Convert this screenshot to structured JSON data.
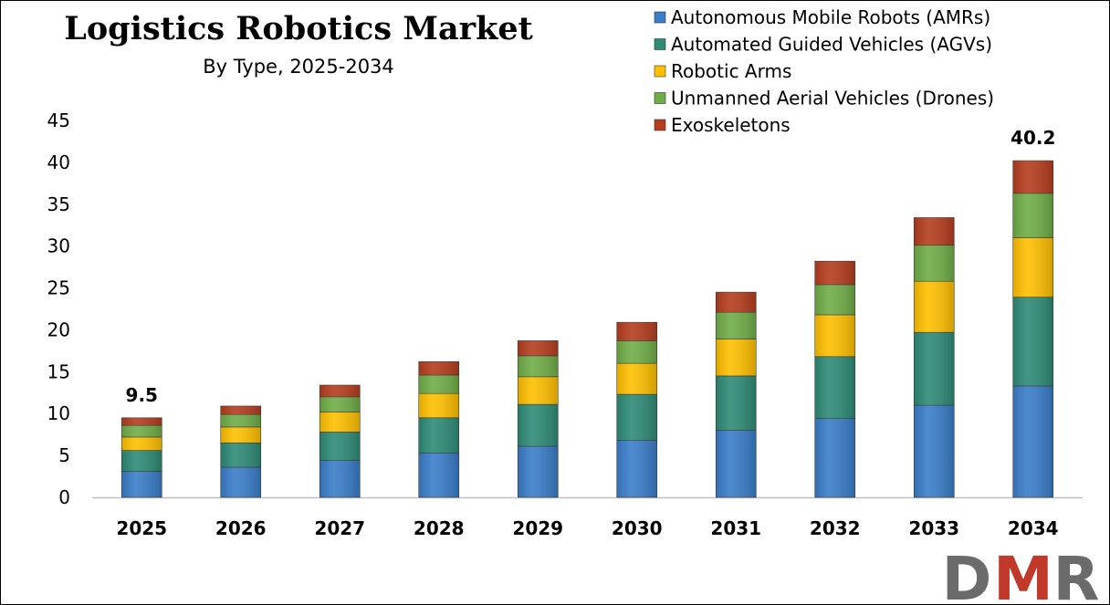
{
  "chart_data": {
    "type": "bar",
    "stacked": true,
    "title": "Logistics Robotics Market",
    "subtitle": "By Type, 2025-2034",
    "xlabel": "",
    "ylabel": "",
    "ylim": [
      0,
      45
    ],
    "yticks": [
      0,
      5,
      10,
      15,
      20,
      25,
      30,
      35,
      40,
      45
    ],
    "grid": false,
    "legend_position": "top-right",
    "categories": [
      "2025",
      "2026",
      "2027",
      "2028",
      "2029",
      "2030",
      "2031",
      "2032",
      "2033",
      "2034"
    ],
    "series": [
      {
        "name": "Autonomous Mobile Robots (AMRs)",
        "color": "#3a7dc9",
        "values": [
          3.1,
          3.6,
          4.4,
          5.3,
          6.1,
          6.8,
          8.0,
          9.4,
          11.0,
          13.3
        ]
      },
      {
        "name": "Automated Guided Vehicles (AGVs)",
        "color": "#2e8b76",
        "values": [
          2.5,
          2.9,
          3.4,
          4.2,
          5.0,
          5.5,
          6.5,
          7.4,
          8.7,
          10.6
        ]
      },
      {
        "name": "Robotic Arms",
        "color": "#ffc000",
        "values": [
          1.6,
          1.9,
          2.4,
          2.9,
          3.3,
          3.7,
          4.4,
          5.0,
          6.1,
          7.1
        ]
      },
      {
        "name": "Unmanned Aerial Vehicles (Drones)",
        "color": "#70ad47",
        "values": [
          1.4,
          1.5,
          1.8,
          2.2,
          2.5,
          2.7,
          3.2,
          3.6,
          4.3,
          5.3
        ]
      },
      {
        "name": "Exoskeletons",
        "color": "#b53d1e",
        "values": [
          0.9,
          1.0,
          1.4,
          1.6,
          1.8,
          2.2,
          2.4,
          2.8,
          3.3,
          3.9
        ]
      }
    ],
    "data_labels": [
      {
        "category": "2025",
        "text": "9.5"
      },
      {
        "category": "2034",
        "text": "40.2"
      }
    ]
  },
  "logo": {
    "text": "DMR",
    "colors": [
      "#6b6b6b",
      "#c0392b",
      "#6b6b6b"
    ],
    "icon": "dmr-logo"
  }
}
